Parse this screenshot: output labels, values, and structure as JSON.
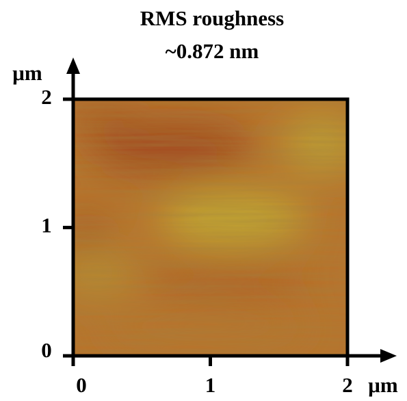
{
  "chart_data": {
    "type": "image",
    "title": "RMS roughness",
    "subtitle": "~0.872 nm",
    "x_label": "μm",
    "y_label": "μm",
    "xlim": [
      0,
      2
    ],
    "ylim": [
      0,
      2
    ],
    "xticks": [
      0,
      1,
      2
    ],
    "yticks": [
      0,
      1,
      2
    ]
  }
}
